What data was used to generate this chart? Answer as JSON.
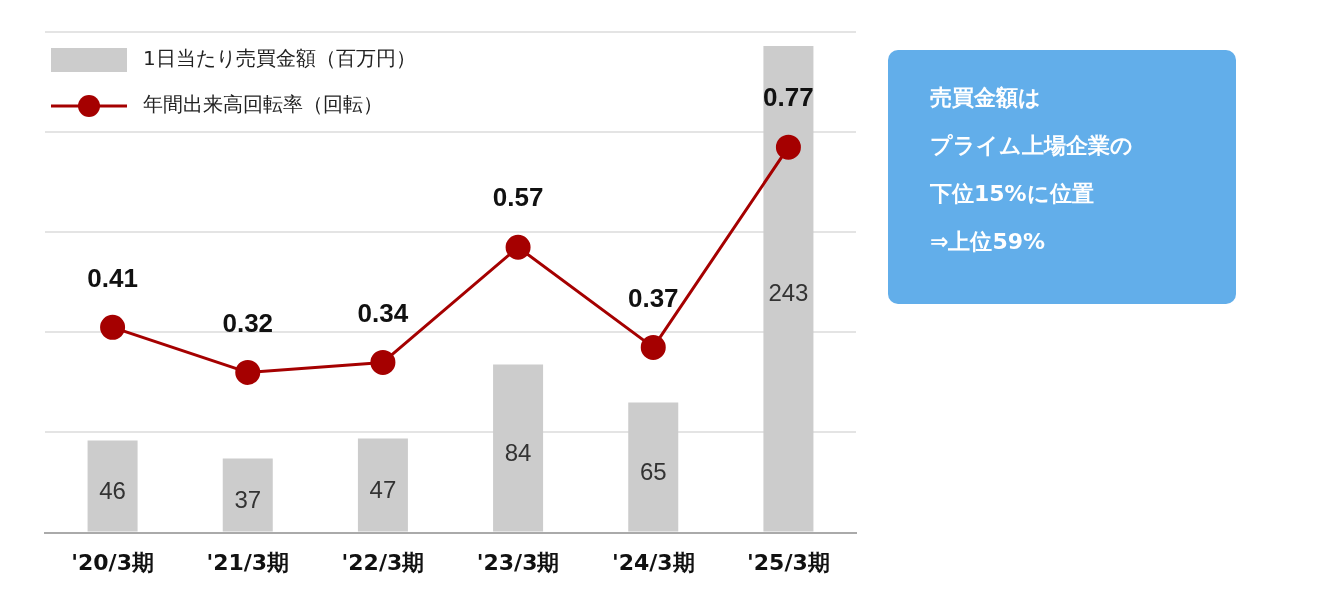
{
  "chart_data": {
    "type": "bar",
    "categories": [
      "'20/3期",
      "'21/3期",
      "'22/3期",
      "'23/3期",
      "'24/3期",
      "'25/3期"
    ],
    "series": [
      {
        "name": "1日当たり売買金額（百万円）",
        "color": "#cccccc",
        "values": [
          46,
          37,
          47,
          84,
          65,
          243
        ]
      },
      {
        "name": "年間出来高回転率（回転）",
        "type": "line",
        "axis": "y2",
        "color": "#a50000",
        "values": [
          0.41,
          0.32,
          0.34,
          0.57,
          0.37,
          0.77
        ]
      }
    ],
    "ylim": [
      0,
      250
    ],
    "yticks": [
      {
        "value": 0,
        "label": null
      },
      {
        "value": 50,
        "label": null
      },
      {
        "value": 100,
        "label": null
      },
      {
        "value": 150,
        "label": null
      },
      {
        "value": 200,
        "label": null
      },
      {
        "value": 250,
        "label": null
      }
    ],
    "y2lim": [
      0,
      1
    ],
    "tick_labels": "x",
    "grid": "y",
    "legend": "top left",
    "marker": "circle",
    "line_style": "solid",
    "data_labels": true,
    "annotations": [
      "売買金額は",
      "プライム上場企業の",
      "下位15%に位置",
      "⇒上位59%"
    ]
  }
}
